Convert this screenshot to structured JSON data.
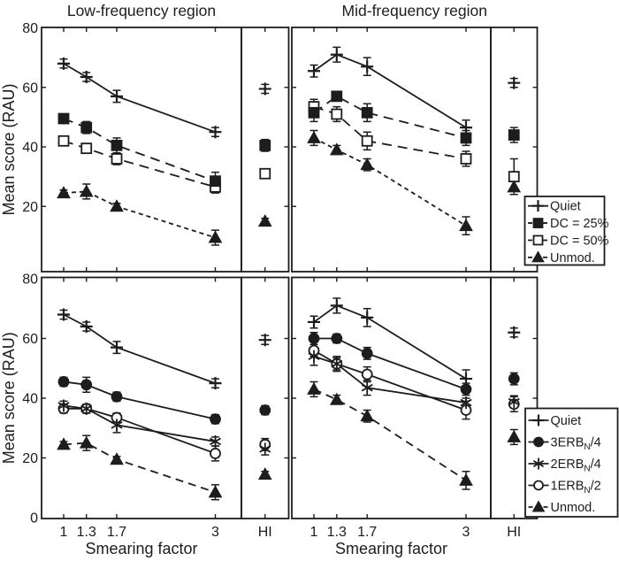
{
  "figure": {
    "ink_color": "#1d1d1d",
    "background": "#ffffff"
  },
  "chart_data": {
    "type": "line",
    "column_titles": [
      "Low-frequency region",
      "Mid-frequency region"
    ],
    "xlabel": "Smearing factor",
    "ylabel": "Mean score (RAU)",
    "ylim": [
      0,
      80
    ],
    "x": [
      1,
      1.3,
      1.7,
      3
    ],
    "x_tick_labels": [
      "1",
      "1.3",
      "1.7",
      "3"
    ],
    "hi_label": "HI",
    "ytick_labels_top_row": [
      "80",
      "60",
      "40",
      "20"
    ],
    "ytick_labels_bottom_row": [
      "80",
      "60",
      "40",
      "20",
      "0"
    ],
    "yticks": [
      80,
      60,
      40,
      20,
      0
    ],
    "grid": false,
    "legend_position": "outside-right-overlapping",
    "rows": [
      {
        "name": "modulated-masker-conditions",
        "legend": [
          {
            "label": "Quiet",
            "marker": "plus",
            "line": "solid"
          },
          {
            "label": "DC = 25%",
            "marker": "square-filled",
            "line": "dashed"
          },
          {
            "label": "DC = 50%",
            "marker": "square-open",
            "line": "dashed"
          },
          {
            "label": "Unmod.",
            "marker": "triangle-filled",
            "line": "dashed-short"
          }
        ],
        "panels": [
          {
            "region": "Low-frequency region",
            "series": [
              {
                "name": "Quiet",
                "y": [
                  68,
                  63.5,
                  57,
                  45
                ],
                "err": [
                  1.5,
                  1.5,
                  2,
                  1.5
                ],
                "hi": 59.5,
                "hi_err": 1.5
              },
              {
                "name": "DC = 25%",
                "y": [
                  49.5,
                  46.5,
                  40.5,
                  28.5
                ],
                "err": [
                  1.5,
                  2,
                  2.5,
                  3
                ],
                "hi": 40.5,
                "hi_err": 2
              },
              {
                "name": "DC = 50%",
                "y": [
                  42,
                  39.5,
                  36,
                  26.5
                ],
                "err": [
                  1.5,
                  1.5,
                  2,
                  2
                ],
                "hi": 31,
                "hi_err": 1.5
              },
              {
                "name": "Unmod.",
                "y": [
                  24.5,
                  25,
                  20,
                  9.5
                ],
                "err": [
                  1,
                  2.5,
                  1,
                  2.5
                ],
                "hi": 15,
                "hi_err": 1
              }
            ]
          },
          {
            "region": "Mid-frequency region",
            "series": [
              {
                "name": "Quiet",
                "y": [
                  65.5,
                  71,
                  67,
                  46.5
                ],
                "err": [
                  2,
                  2.5,
                  3,
                  2.5
                ],
                "hi": 61.5,
                "hi_err": 1.5
              },
              {
                "name": "DC = 25%",
                "y": [
                  51.5,
                  57,
                  51.5,
                  43
                ],
                "err": [
                  3,
                  1.5,
                  3,
                  2.5
                ],
                "hi": 44,
                "hi_err": 2.5
              },
              {
                "name": "DC = 50%",
                "y": [
                  53.5,
                  51,
                  42,
                  36
                ],
                "err": [
                  2.5,
                  2.5,
                  3,
                  2.5
                ],
                "hi": 30,
                "hi_err": 6
              },
              {
                "name": "Unmod.",
                "y": [
                  43,
                  39,
                  34,
                  13.5
                ],
                "err": [
                  2.5,
                  1.5,
                  2,
                  3
                ],
                "hi": 26.5,
                "hi_err": 2.5
              }
            ]
          }
        ]
      },
      {
        "name": "spectral-smearing-conditions",
        "legend": [
          {
            "label": "Quiet",
            "parts": [
              {
                "t": "Quiet"
              }
            ],
            "marker": "plus",
            "line": "solid"
          },
          {
            "label": "3ERBN/4",
            "parts": [
              {
                "t": "3ERB"
              },
              {
                "t": "N",
                "sub": true
              },
              {
                "t": "/4"
              }
            ],
            "marker": "circle-filled",
            "line": "solid"
          },
          {
            "label": "2ERBN/4",
            "parts": [
              {
                "t": "2ERB"
              },
              {
                "t": "N",
                "sub": true
              },
              {
                "t": "/4"
              }
            ],
            "marker": "asterisk",
            "line": "solid"
          },
          {
            "label": "1ERBN/2",
            "parts": [
              {
                "t": "1ERB"
              },
              {
                "t": "N",
                "sub": true
              },
              {
                "t": "/2"
              }
            ],
            "marker": "circle-open",
            "line": "solid"
          },
          {
            "label": "Unmod.",
            "parts": [
              {
                "t": "Unmod."
              }
            ],
            "marker": "triangle-filled",
            "line": "dashed-med"
          }
        ],
        "panels": [
          {
            "region": "Low-frequency region",
            "series": [
              {
                "name": "Quiet",
                "y": [
                  68,
                  64,
                  57,
                  45
                ],
                "err": [
                  1.5,
                  1.5,
                  2,
                  1.5
                ],
                "hi": 59.5,
                "hi_err": 1.5
              },
              {
                "name": "3ERBN/4",
                "y": [
                  45.5,
                  44.5,
                  40.5,
                  33
                ],
                "err": [
                  1.5,
                  2.5,
                  1.5,
                  1.5
                ],
                "hi": 36,
                "hi_err": 1.5
              },
              {
                "name": "2ERBN/4",
                "y": [
                  37.5,
                  36.5,
                  31,
                  25.5
                ],
                "err": [
                  1.5,
                  1.5,
                  2.5,
                  1.5
                ],
                "hi": 23,
                "hi_err": 2
              },
              {
                "name": "1ERBN/2",
                "y": [
                  36.5,
                  36.5,
                  33.5,
                  21.5
                ],
                "err": [
                  1.5,
                  1.5,
                  1.5,
                  2.5
                ],
                "hi": 24.5,
                "hi_err": 2
              },
              {
                "name": "Unmod.",
                "y": [
                  24.5,
                  25,
                  19.5,
                  8.5
                ],
                "err": [
                  1,
                  2.5,
                  1,
                  2.5
                ],
                "hi": 14.5,
                "hi_err": 1
              }
            ]
          },
          {
            "region": "Mid-frequency region",
            "series": [
              {
                "name": "Quiet",
                "y": [
                  65.5,
                  71,
                  67,
                  46.5
                ],
                "err": [
                  2,
                  2.5,
                  3,
                  3
                ],
                "hi": 62,
                "hi_err": 1.5
              },
              {
                "name": "3ERBN/4",
                "y": [
                  60,
                  60,
                  55,
                  43
                ],
                "err": [
                  2,
                  1.5,
                  2,
                  2
                ],
                "hi": 46.5,
                "hi_err": 2
              },
              {
                "name": "2ERBN/4",
                "y": [
                  54,
                  51.5,
                  43.5,
                  38.5
                ],
                "err": [
                  3,
                  2.5,
                  2.5,
                  1.5
                ],
                "hi": 38.8,
                "hi_err": 2
              },
              {
                "name": "1ERBN/2",
                "y": [
                  56,
                  51.5,
                  48,
                  36
                ],
                "err": [
                  2,
                  2,
                  2.5,
                  3
                ],
                "hi": 38,
                "hi_err": 2.5
              },
              {
                "name": "Unmod.",
                "y": [
                  43,
                  39.5,
                  34,
                  12.5
                ],
                "err": [
                  2.5,
                  1.5,
                  2,
                  3
                ],
                "hi": 27,
                "hi_err": 2.5
              }
            ]
          }
        ]
      }
    ]
  }
}
